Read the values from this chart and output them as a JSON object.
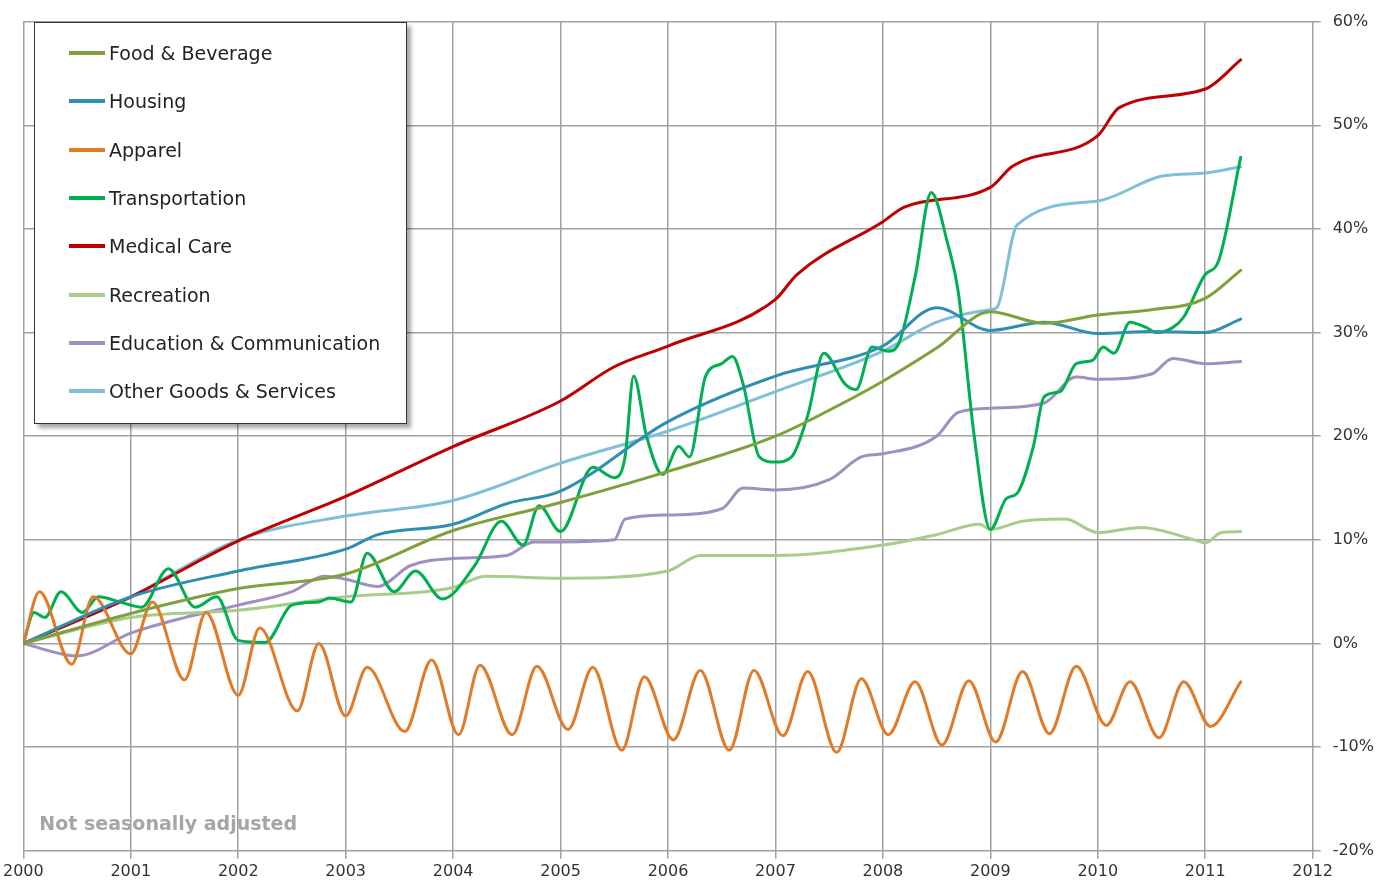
{
  "chart_data": {
    "type": "line",
    "xlim": [
      2000,
      2012
    ],
    "xticks": [
      2000,
      2001,
      2002,
      2003,
      2004,
      2005,
      2006,
      2007,
      2008,
      2009,
      2010,
      2011,
      2012
    ],
    "ylim": [
      -20,
      60
    ],
    "yticks": [
      {
        "value": -20,
        "label": "-20%"
      },
      {
        "value": -10,
        "label": "-10%"
      },
      {
        "value": 0,
        "label": "0%"
      },
      {
        "value": 10,
        "label": "10%"
      },
      {
        "value": 20,
        "label": "20%"
      },
      {
        "value": 30,
        "label": "30%"
      },
      {
        "value": 40,
        "label": "40%"
      },
      {
        "value": 50,
        "label": "50%"
      },
      {
        "value": 60,
        "label": "60%"
      }
    ],
    "grid": true,
    "legend": "top left",
    "marker": "none",
    "line_style": "solid",
    "annotations": [
      "Not seasonally adjusted"
    ],
    "series": [
      {
        "name": "Food & Beverage",
        "color": "#7fa03a",
        "x": [
          2000,
          2001,
          2002,
          2003,
          2004,
          2005,
          2006,
          2007,
          2007.5,
          2008,
          2008.5,
          2009,
          2009.5,
          2010,
          2010.5,
          2011,
          2011.33
        ],
        "values": [
          0,
          2.9,
          5.3,
          6.7,
          10.9,
          13.6,
          16.6,
          20,
          22.5,
          25.3,
          28.5,
          32,
          30.9,
          31.7,
          32.2,
          33.3,
          36
        ]
      },
      {
        "name": "Housing",
        "color": "#2e8fb0",
        "x": [
          2000,
          2001,
          2002,
          2003,
          2003.3,
          2004,
          2004.5,
          2005,
          2006,
          2007,
          2008,
          2008.5,
          2009,
          2009.5,
          2010,
          2010.5,
          2011,
          2011.33
        ],
        "values": [
          0,
          4.5,
          7,
          9.1,
          10.5,
          11.5,
          13.5,
          14.7,
          21.4,
          25.8,
          28.7,
          32.4,
          30.2,
          31,
          29.9,
          30.1,
          30,
          31.3
        ]
      },
      {
        "name": "Apparel",
        "color": "#e07b2a",
        "x": [
          2000,
          2000.15,
          2000.45,
          2000.65,
          2001,
          2001.2,
          2001.5,
          2001.7,
          2002,
          2002.2,
          2002.55,
          2002.75,
          2003,
          2003.2,
          2003.55,
          2003.8,
          2004.05,
          2004.25,
          2004.55,
          2004.78,
          2005.07,
          2005.3,
          2005.57,
          2005.78,
          2006.05,
          2006.3,
          2006.57,
          2006.8,
          2007.07,
          2007.3,
          2007.57,
          2007.8,
          2008.05,
          2008.3,
          2008.55,
          2008.8,
          2009.05,
          2009.3,
          2009.55,
          2009.8,
          2010.08,
          2010.3,
          2010.57,
          2010.8,
          2011.05,
          2011.33
        ],
        "values": [
          0,
          5,
          -2,
          4.5,
          -1,
          4,
          -3.5,
          3,
          -5,
          1.5,
          -6.5,
          0,
          -7,
          -2.3,
          -8.5,
          -1.6,
          -8.8,
          -2.1,
          -8.8,
          -2.2,
          -8.3,
          -2.3,
          -10.3,
          -3.2,
          -9.3,
          -2.6,
          -10.3,
          -2.6,
          -8.9,
          -2.7,
          -10.5,
          -3.4,
          -8.8,
          -3.7,
          -9.8,
          -3.6,
          -9.5,
          -2.7,
          -8.7,
          -2.2,
          -7.9,
          -3.7,
          -9.1,
          -3.7,
          -8,
          -3.7
        ]
      },
      {
        "name": "Transportation",
        "color": "#00b050",
        "x": [
          2000,
          2000.1,
          2000.2,
          2000.35,
          2000.55,
          2000.7,
          2000.9,
          2001.1,
          2001.35,
          2001.6,
          2001.8,
          2002,
          2002.25,
          2002.5,
          2002.75,
          2002.85,
          2003.05,
          2003.2,
          2003.45,
          2003.65,
          2003.9,
          2004.2,
          2004.45,
          2004.65,
          2004.8,
          2005,
          2005.3,
          2005.5,
          2005.6,
          2005.68,
          2005.8,
          2005.95,
          2006.1,
          2006.2,
          2006.35,
          2006.5,
          2006.6,
          2006.7,
          2006.85,
          2007,
          2007.15,
          2007.3,
          2007.45,
          2007.65,
          2007.75,
          2007.9,
          2008.05,
          2008.15,
          2008.3,
          2008.45,
          2008.6,
          2008.7,
          2008.85,
          2009,
          2009.15,
          2009.25,
          2009.4,
          2009.5,
          2009.65,
          2009.8,
          2009.95,
          2010.05,
          2010.15,
          2010.3,
          2010.45,
          2010.55,
          2010.7,
          2010.8,
          2011,
          2011.12,
          2011.33
        ],
        "values": [
          0,
          3,
          2.5,
          5,
          3,
          4.5,
          4,
          3.5,
          7.2,
          3.5,
          4.5,
          0.3,
          0.1,
          3.7,
          4,
          4.4,
          4,
          8.7,
          5,
          7,
          4.3,
          7.5,
          11.8,
          9.5,
          13.3,
          10.8,
          17,
          16,
          18,
          25.8,
          20,
          16.3,
          19,
          18,
          25.8,
          27,
          27.7,
          25,
          18,
          17.5,
          18,
          22,
          28,
          25,
          24.5,
          28.6,
          28.2,
          29,
          35.4,
          43.5,
          38.7,
          34,
          20,
          11,
          14,
          14.5,
          19,
          23.8,
          24.3,
          27,
          27.3,
          28.6,
          28,
          31,
          30.5,
          30,
          30.5,
          31.5,
          35.6,
          36.8,
          46.9
        ]
      },
      {
        "name": "Medical Care",
        "color": "#c00000",
        "x": [
          2000,
          2001,
          2002,
          2003,
          2004,
          2005,
          2005.5,
          2006,
          2007,
          2007.2,
          2008,
          2008.2,
          2009,
          2009.2,
          2010,
          2010.2,
          2011,
          2011.33
        ],
        "values": [
          0,
          4.5,
          9.9,
          14.2,
          19,
          23.4,
          26.7,
          28.7,
          33.2,
          35.6,
          40.7,
          42.1,
          44,
          46,
          49,
          51.7,
          53.5,
          56.3
        ]
      },
      {
        "name": "Recreation",
        "color": "#a9cc8a",
        "x": [
          2000,
          2001,
          2002,
          2003,
          2004,
          2004.3,
          2005,
          2006,
          2006.3,
          2007,
          2008,
          2008.5,
          2008.9,
          2009,
          2009.3,
          2009.7,
          2010,
          2010.4,
          2010.9,
          2011,
          2011.15,
          2011.33
        ],
        "values": [
          0,
          2.5,
          3.2,
          4.5,
          5.4,
          6.5,
          6.3,
          7,
          8.5,
          8.5,
          9.5,
          10.5,
          11.5,
          11,
          11.8,
          12,
          10.7,
          11.2,
          10,
          9.7,
          10.7,
          10.8
        ]
      },
      {
        "name": "Education & Communication",
        "color": "#a08fc0",
        "x": [
          2000,
          2000.5,
          2001,
          2001.5,
          2002,
          2002.5,
          2002.8,
          2003,
          2003.3,
          2003.6,
          2004,
          2004.5,
          2004.75,
          2005,
          2005.5,
          2005.6,
          2006,
          2006.5,
          2006.7,
          2007,
          2007.5,
          2007.8,
          2008,
          2008.5,
          2008.7,
          2009,
          2009.5,
          2009.8,
          2010,
          2010.5,
          2010.7,
          2011,
          2011.33
        ],
        "values": [
          0,
          -1.2,
          1,
          2.5,
          3.7,
          5,
          6.5,
          6.2,
          5.5,
          7.5,
          8.2,
          8.5,
          9.8,
          9.8,
          10,
          12,
          12.4,
          13,
          15,
          14.8,
          15.8,
          18,
          18.3,
          20,
          22.3,
          22.7,
          23.2,
          25.7,
          25.5,
          26,
          27.5,
          27,
          27.2
        ]
      },
      {
        "name": "Other Goods & Services",
        "color": "#7fc0d8",
        "x": [
          2000,
          2001,
          2002,
          2003,
          2004,
          2005,
          2006,
          2007,
          2008,
          2008.5,
          2009,
          2009.06,
          2009.25,
          2010,
          2010.6,
          2011,
          2011.33
        ],
        "values": [
          0,
          4.5,
          10,
          12.3,
          13.8,
          17.4,
          20.5,
          24.3,
          28.2,
          31,
          32.2,
          32.4,
          40.4,
          42.7,
          45.1,
          45.4,
          46
        ]
      }
    ]
  }
}
